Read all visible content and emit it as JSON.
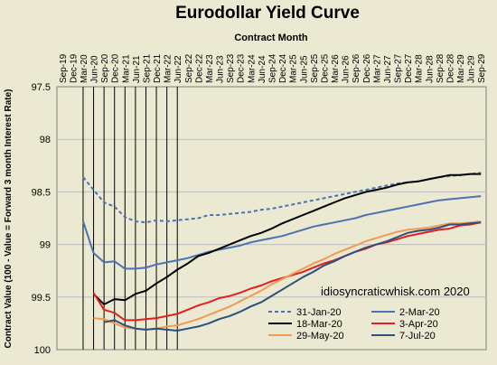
{
  "chart_data": {
    "type": "line",
    "title": "Eurodollar Yield Curve",
    "xlabel": "Contract Month",
    "ylabel": "Contract Value (100 - Value = Forward 3 month Interest Rate)",
    "annotation": "idiosyncraticwhisk.com   2020",
    "y_reversed": true,
    "ylim": [
      97.5,
      100
    ],
    "yticks": [
      "97.5",
      "98",
      "98.5",
      "99",
      "99.5",
      "100"
    ],
    "x_tick_labels": [
      "Sep-19",
      "Dec-19",
      "Mar-20",
      "Jun-20",
      "Sep-20",
      "Dec-20",
      "Mar-21",
      "Jun-21",
      "Sep-21",
      "Dec-21",
      "Mar-22",
      "Jun-22",
      "Sep-22",
      "Dec-22",
      "Mar-23",
      "Jun-23",
      "Sep-23",
      "Dec-23",
      "Mar-24",
      "Jun-24",
      "Sep-24",
      "Dec-24",
      "Mar-25",
      "Jun-25",
      "Sep-25",
      "Dec-25",
      "Mar-26",
      "Jun-26",
      "Sep-26",
      "Dec-26",
      "Mar-27",
      "Jun-27",
      "Sep-27",
      "Dec-27",
      "Mar-28",
      "Jun-28",
      "Sep-28",
      "Dec-28",
      "Mar-29",
      "Jun-29",
      "Sep-29"
    ],
    "vertical_grid_range": [
      "Mar-20",
      "Jun-22"
    ],
    "legend_position": "bottom-right",
    "series": [
      {
        "name": "31-Jan-20",
        "color": "#4a72b4",
        "dash": true,
        "start": "Mar-20",
        "values": [
          98.36,
          98.48,
          98.6,
          98.64,
          98.74,
          98.78,
          98.79,
          98.77,
          98.78,
          98.77,
          98.76,
          98.75,
          98.72,
          98.72,
          98.71,
          98.7,
          98.69,
          98.67,
          98.66,
          98.64,
          98.62,
          98.6,
          98.58,
          98.56,
          98.54,
          98.52,
          98.5,
          98.48,
          98.46,
          98.44,
          98.42,
          98.41,
          98.4,
          98.38,
          98.36,
          98.35,
          98.34,
          98.33,
          98.32
        ]
      },
      {
        "name": "2-Mar-20",
        "color": "#4a72b4",
        "dash": false,
        "start": "Mar-20",
        "values": [
          98.78,
          99.08,
          99.17,
          99.16,
          99.23,
          99.23,
          99.22,
          99.19,
          99.17,
          99.15,
          99.13,
          99.1,
          99.07,
          99.05,
          99.03,
          99.01,
          98.98,
          98.96,
          98.94,
          98.92,
          98.89,
          98.86,
          98.83,
          98.81,
          98.79,
          98.77,
          98.75,
          98.72,
          98.7,
          98.68,
          98.66,
          98.64,
          98.62,
          98.6,
          98.58,
          98.57,
          98.56,
          98.55,
          98.54
        ]
      },
      {
        "name": "18-Mar-20",
        "color": "#000000",
        "dash": false,
        "start": "Jun-20",
        "values": [
          99.47,
          99.57,
          99.52,
          99.53,
          99.47,
          99.44,
          99.37,
          99.31,
          99.24,
          99.18,
          99.11,
          99.08,
          99.04,
          99.0,
          98.96,
          98.92,
          98.89,
          98.85,
          98.8,
          98.76,
          98.72,
          98.68,
          98.64,
          98.6,
          98.56,
          98.53,
          98.5,
          98.48,
          98.46,
          98.43,
          98.41,
          98.4,
          98.38,
          98.36,
          98.34,
          98.34,
          98.33,
          98.33
        ]
      },
      {
        "name": "3-Apr-20",
        "color": "#e0201e",
        "dash": false,
        "start": "Jun-20",
        "values": [
          99.46,
          99.62,
          99.65,
          99.72,
          99.72,
          99.71,
          99.7,
          99.68,
          99.66,
          99.62,
          99.58,
          99.55,
          99.51,
          99.49,
          99.46,
          99.42,
          99.39,
          99.35,
          99.32,
          99.29,
          99.26,
          99.22,
          99.18,
          99.15,
          99.11,
          99.07,
          99.04,
          99.0,
          98.98,
          98.95,
          98.92,
          98.9,
          98.88,
          98.86,
          98.85,
          98.82,
          98.81,
          98.79
        ]
      },
      {
        "name": "29-May-20",
        "color": "#f29a54",
        "dash": false,
        "start": "Jun-20",
        "values": [
          99.7,
          99.71,
          99.75,
          99.79,
          99.8,
          99.81,
          99.8,
          99.78,
          99.77,
          99.74,
          99.71,
          99.67,
          99.63,
          99.59,
          99.54,
          99.49,
          99.44,
          99.38,
          99.33,
          99.28,
          99.23,
          99.18,
          99.14,
          99.09,
          99.05,
          99.01,
          98.97,
          98.94,
          98.91,
          98.88,
          98.86,
          98.85,
          98.84,
          98.82,
          98.8,
          98.8,
          98.79,
          98.78
        ]
      },
      {
        "name": "7-Jul-20",
        "color": "#2c4f7c",
        "dash": false,
        "start": "Sep-20",
        "values": [
          99.74,
          99.72,
          99.77,
          99.8,
          99.81,
          99.8,
          99.81,
          99.82,
          99.8,
          99.78,
          99.75,
          99.71,
          99.68,
          99.64,
          99.59,
          99.55,
          99.49,
          99.43,
          99.37,
          99.31,
          99.26,
          99.2,
          99.16,
          99.11,
          99.07,
          99.03,
          99.0,
          98.97,
          98.93,
          98.89,
          98.87,
          98.86,
          98.84,
          98.81,
          98.81,
          98.8,
          98.79
        ]
      }
    ]
  }
}
